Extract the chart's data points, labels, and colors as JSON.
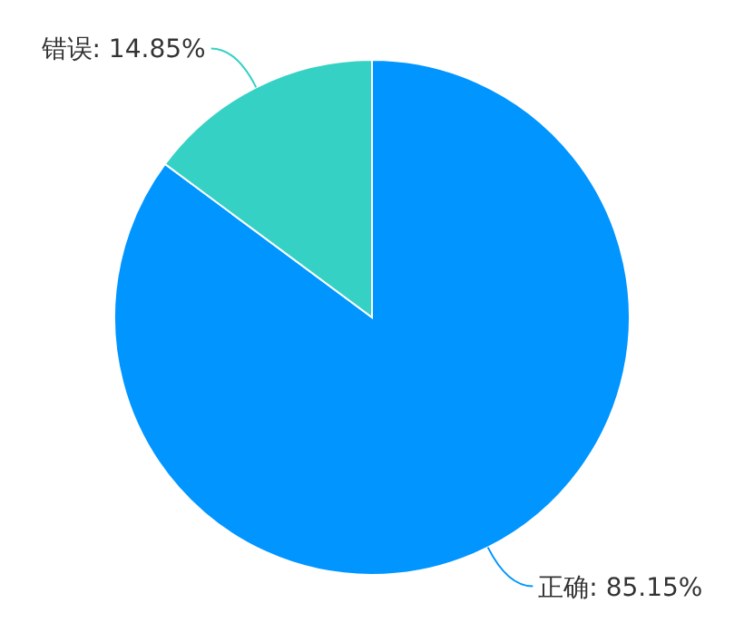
{
  "chart_data": {
    "type": "pie",
    "categories": [
      "正确",
      "错误"
    ],
    "values": [
      85.15,
      14.85
    ],
    "colors": [
      "#0095ff",
      "#36d1c5"
    ],
    "value_labels": [
      "85.15%",
      "14.85%"
    ]
  }
}
